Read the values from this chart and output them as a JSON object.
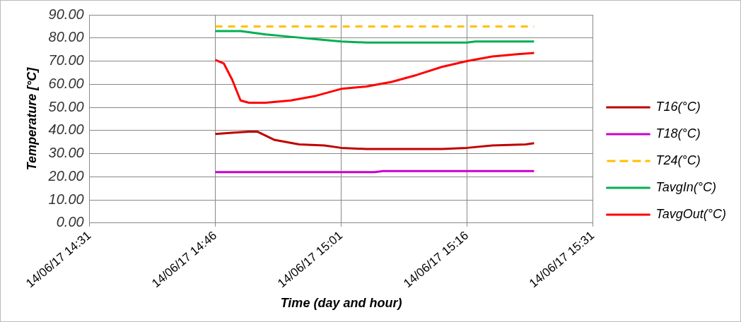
{
  "chart_data": {
    "type": "line",
    "xlabel": "Time (day and hour)",
    "ylabel": "Temperature [°C]",
    "xlim": [
      "--06-14T14:31",
      "--06-14T15:31"
    ],
    "xticks": [
      {
        "value": "--06-14T14:31",
        "label": "14/06/17 14:31"
      },
      {
        "value": "--06-14T14:46",
        "label": "14/06/17 14:46"
      },
      {
        "value": "--06-14T15:01",
        "label": "14/06/17 15:01"
      },
      {
        "value": "--06-14T15:16",
        "label": "14/06/17 15:16"
      },
      {
        "value": "--06-14T15:31",
        "label": "14/06/17 15:31"
      }
    ],
    "ylim": [
      0,
      90
    ],
    "yticks": [
      {
        "value": 0,
        "label": "0.00"
      },
      {
        "value": 10,
        "label": "10.00"
      },
      {
        "value": 20,
        "label": "20.00"
      },
      {
        "value": 30,
        "label": "30.00"
      },
      {
        "value": 40,
        "label": "40.00"
      },
      {
        "value": 50,
        "label": "50.00"
      },
      {
        "value": 60,
        "label": "60.00"
      },
      {
        "value": 70,
        "label": "70.00"
      },
      {
        "value": 80,
        "label": "80.00"
      },
      {
        "value": 90,
        "label": "90.00"
      }
    ],
    "grid": true,
    "legend": "right",
    "marker": "none",
    "series": [
      {
        "name": "T16(°C)",
        "color": "#c00000",
        "x": [
          "--06-14T14:46",
          "--06-14T14:48",
          "--06-14T14:50",
          "--06-14T14:51",
          "--06-14T14:53",
          "--06-14T14:56",
          "--06-14T14:59",
          "--06-14T15:01",
          "--06-14T15:04",
          "--06-14T15:13",
          "--06-14T15:16",
          "--06-14T15:19",
          "--06-14T15:23",
          "--06-14T15:24"
        ],
        "values": [
          38.5,
          39,
          39.5,
          39.5,
          36,
          34,
          33.5,
          32.5,
          32,
          32,
          32.5,
          33.5,
          34,
          34.5
        ]
      },
      {
        "name": "T18(°C)",
        "color": "#cc00cc",
        "x": [
          "--06-14T14:46",
          "--06-14T15:05",
          "--06-14T15:06",
          "--06-14T15:24"
        ],
        "values": [
          22,
          22,
          22.5,
          22.5
        ]
      },
      {
        "name": "T24(°C)",
        "color": "#ffc000",
        "line_style": "dashed",
        "x": [
          "--06-14T14:46",
          "--06-14T15:24"
        ],
        "values": [
          85,
          85
        ]
      },
      {
        "name": "TavgIn(°C)",
        "color": "#00b050",
        "x": [
          "--06-14T14:46",
          "--06-14T14:49",
          "--06-14T14:52",
          "--06-14T14:55",
          "--06-14T14:58",
          "--06-14T15:01",
          "--06-14T15:04",
          "--06-14T15:16",
          "--06-14T15:17",
          "--06-14T15:24"
        ],
        "values": [
          83,
          83,
          81.5,
          80.5,
          79.5,
          78.5,
          78,
          78,
          78.5,
          78.5
        ]
      },
      {
        "name": "TavgOut(°C)",
        "color": "#ff0000",
        "x": [
          "--06-14T14:46",
          "--06-14T14:47",
          "--06-14T14:48",
          "--06-14T14:49",
          "--06-14T14:50",
          "--06-14T14:52",
          "--06-14T14:55",
          "--06-14T14:58",
          "--06-14T15:01",
          "--06-14T15:04",
          "--06-14T15:07",
          "--06-14T15:10",
          "--06-14T15:13",
          "--06-14T15:16",
          "--06-14T15:19",
          "--06-14T15:22",
          "--06-14T15:24"
        ],
        "values": [
          70.5,
          69,
          62,
          53,
          52,
          52,
          53,
          55,
          58,
          59,
          61,
          64,
          67.5,
          70,
          72,
          73,
          73.5
        ]
      }
    ]
  }
}
